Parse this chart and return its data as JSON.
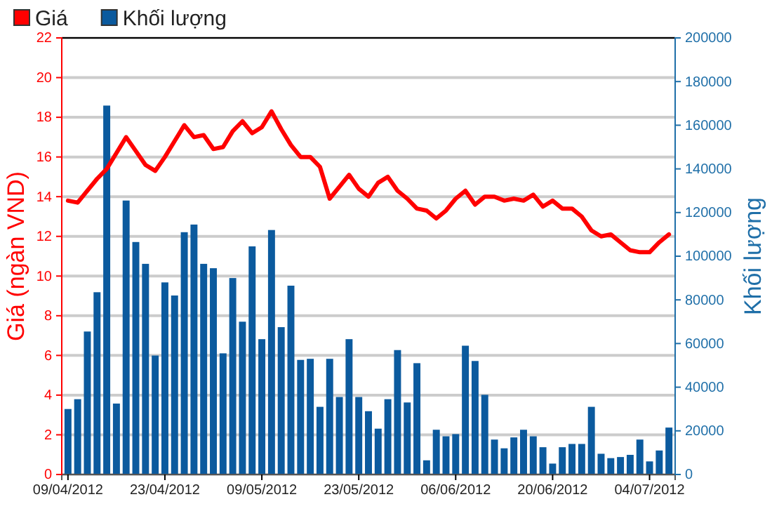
{
  "chart_data": {
    "type": "bar",
    "categories": [
      "09/04/2012",
      null,
      null,
      null,
      null,
      null,
      null,
      null,
      null,
      null,
      "23/04/2012",
      null,
      null,
      null,
      null,
      null,
      null,
      null,
      null,
      null,
      "09/05/2012",
      null,
      null,
      null,
      null,
      null,
      null,
      null,
      null,
      null,
      "23/05/2012",
      null,
      null,
      null,
      null,
      null,
      null,
      null,
      null,
      null,
      "06/06/2012",
      null,
      null,
      null,
      null,
      null,
      null,
      null,
      null,
      null,
      "20/06/2012",
      null,
      null,
      null,
      null,
      null,
      null,
      null,
      null,
      null,
      "04/07/2012",
      null,
      null
    ],
    "series": [
      {
        "name": "Giá",
        "type": "line",
        "color": "#ff0000",
        "values": [
          13.8,
          13.7,
          14.3,
          14.9,
          15.4,
          16.2,
          17.0,
          16.3,
          15.6,
          15.3,
          16.0,
          16.8,
          17.6,
          17.0,
          17.1,
          16.4,
          16.5,
          17.3,
          17.8,
          17.2,
          17.5,
          18.3,
          17.4,
          16.6,
          16.0,
          16.0,
          15.5,
          13.9,
          14.5,
          15.1,
          14.4,
          14.0,
          14.7,
          15.0,
          14.3,
          13.9,
          13.4,
          13.3,
          12.9,
          13.3,
          13.9,
          14.3,
          13.6,
          14.0,
          14.0,
          13.8,
          13.9,
          13.8,
          14.1,
          13.5,
          13.8,
          13.4,
          13.4,
          13.0,
          12.3,
          12.0,
          12.1,
          11.7,
          11.3,
          11.2,
          11.2,
          11.7,
          12.1
        ]
      },
      {
        "name": "Khối lượng",
        "axis": "y2",
        "color": "#0b5a9e",
        "values": [
          30000,
          34500,
          65500,
          83500,
          169000,
          32500,
          125500,
          106500,
          96500,
          54500,
          88000,
          82000,
          111000,
          114500,
          96500,
          94500,
          55500,
          90000,
          70000,
          104500,
          62000,
          112000,
          67500,
          86500,
          52500,
          53000,
          31000,
          53000,
          35500,
          62000,
          35500,
          29000,
          21000,
          34500,
          57000,
          33000,
          51000,
          6500,
          20500,
          17500,
          18500,
          59000,
          52000,
          36500,
          16000,
          12000,
          17000,
          20500,
          17500,
          12500,
          5000,
          12500,
          14000,
          14000,
          31000,
          9500,
          7500,
          8000,
          9000,
          16000,
          6000,
          11000,
          21500
        ]
      }
    ],
    "ylabel": "Giá (ngàn VND)",
    "y2label": "Khối lượng",
    "ylim": [
      0,
      22
    ],
    "yticks": [
      0,
      2,
      4,
      6,
      8,
      10,
      12,
      14,
      16,
      18,
      20,
      22
    ],
    "y2lim": [
      0,
      200000
    ],
    "y2ticks": [
      0,
      20000,
      40000,
      60000,
      80000,
      100000,
      120000,
      140000,
      160000,
      180000,
      200000
    ],
    "grid": "y",
    "legend": "top left"
  }
}
